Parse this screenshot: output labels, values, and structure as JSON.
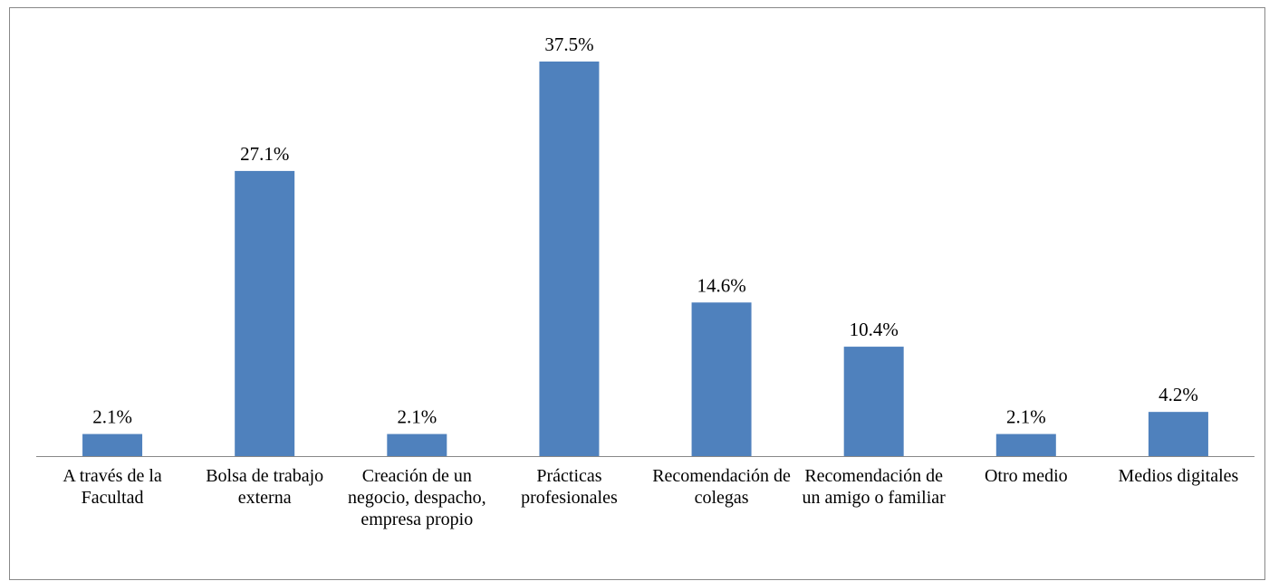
{
  "chart_data": {
    "type": "bar",
    "categories": [
      "A través de la Facultad",
      "Bolsa de trabajo externa",
      "Creación de un negocio, despacho, empresa propio",
      "Prácticas profesionales",
      "Recomendación de colegas",
      "Recomendación de un amigo o familiar",
      "Otro medio",
      "Medios digitales"
    ],
    "values": [
      2.1,
      27.1,
      2.1,
      37.5,
      14.6,
      10.4,
      2.1,
      4.2
    ],
    "value_labels": [
      "2.1%",
      "27.1%",
      "2.1%",
      "37.5%",
      "14.6%",
      "10.4%",
      "2.1%",
      "4.2%"
    ],
    "color": "#4f81bd",
    "grid": false
  }
}
